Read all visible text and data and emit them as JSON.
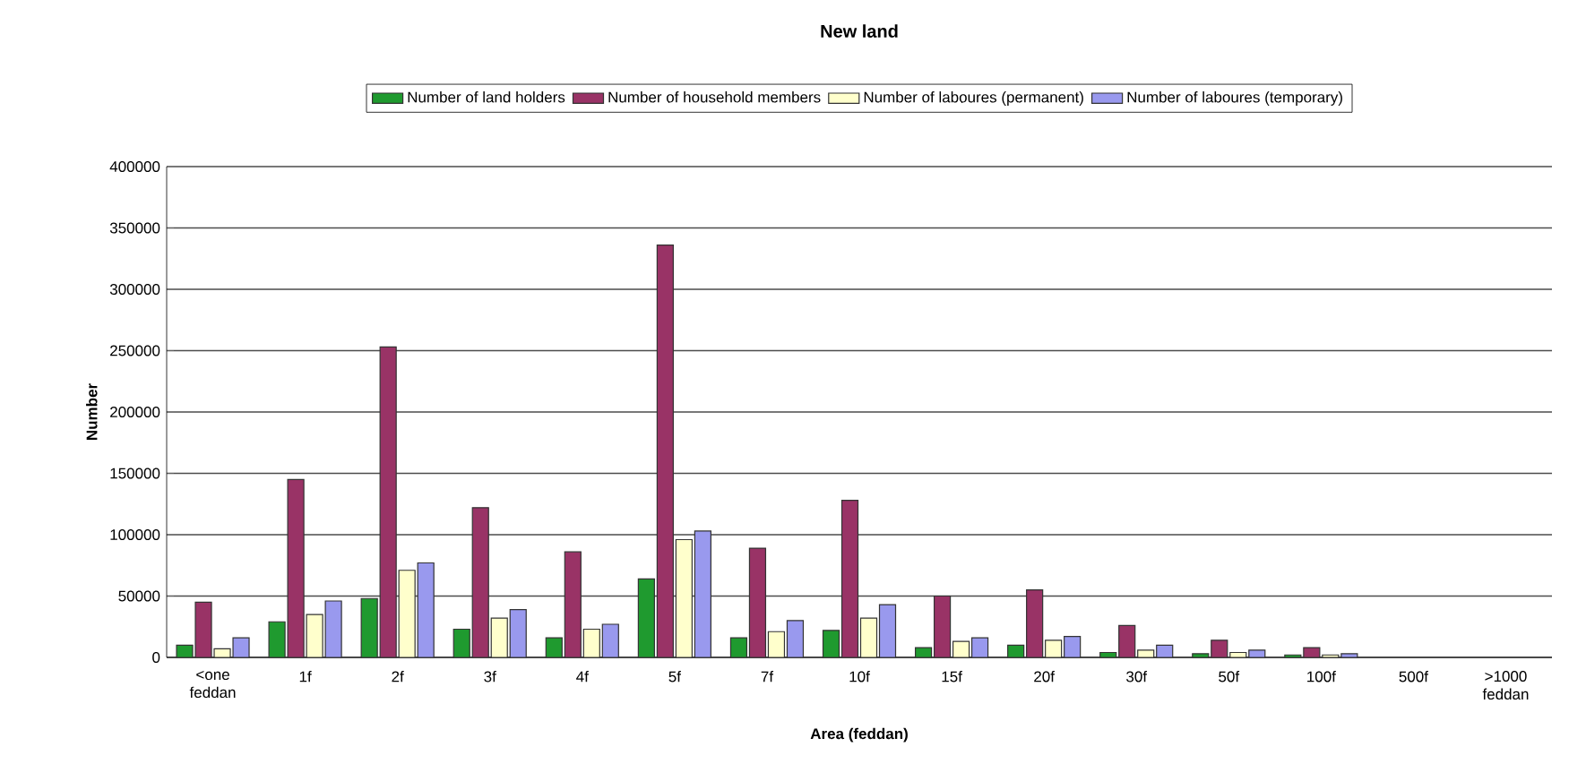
{
  "chart_data": {
    "type": "bar",
    "title": "New land",
    "xlabel": "Area (feddan)",
    "ylabel": "Number",
    "categories": [
      "<one feddan",
      "1f",
      "2f",
      "3f",
      "4f",
      "5f",
      "7f",
      "10f",
      "15f",
      "20f",
      "30f",
      "50f",
      "100f",
      "500f",
      ">1000 feddan"
    ],
    "series": [
      {
        "name": "Number of land holders",
        "color": "#1f9a2f",
        "values": [
          10000,
          29000,
          48000,
          23000,
          16000,
          64000,
          16000,
          22000,
          8000,
          10000,
          4000,
          3000,
          2000,
          null,
          null
        ]
      },
      {
        "name": "Number of household members",
        "color": "#993366",
        "values": [
          45000,
          145000,
          253000,
          122000,
          86000,
          336000,
          89000,
          128000,
          50000,
          55000,
          26000,
          14000,
          8000,
          null,
          null
        ]
      },
      {
        "name": "Number of laboures (permanent)",
        "color": "#ffffcc",
        "values": [
          7000,
          35000,
          71000,
          32000,
          23000,
          96000,
          21000,
          32000,
          13000,
          14000,
          6000,
          4000,
          2000,
          null,
          null
        ]
      },
      {
        "name": "Number of laboures (temporary)",
        "color": "#9999ee",
        "values": [
          16000,
          46000,
          77000,
          39000,
          27000,
          103000,
          30000,
          43000,
          16000,
          17000,
          10000,
          6000,
          3000,
          null,
          null
        ]
      }
    ],
    "ylim": [
      0,
      400000
    ],
    "yticks": [
      0,
      50000,
      100000,
      150000,
      200000,
      250000,
      300000,
      350000,
      400000
    ],
    "grid": "y",
    "legend": "top"
  }
}
